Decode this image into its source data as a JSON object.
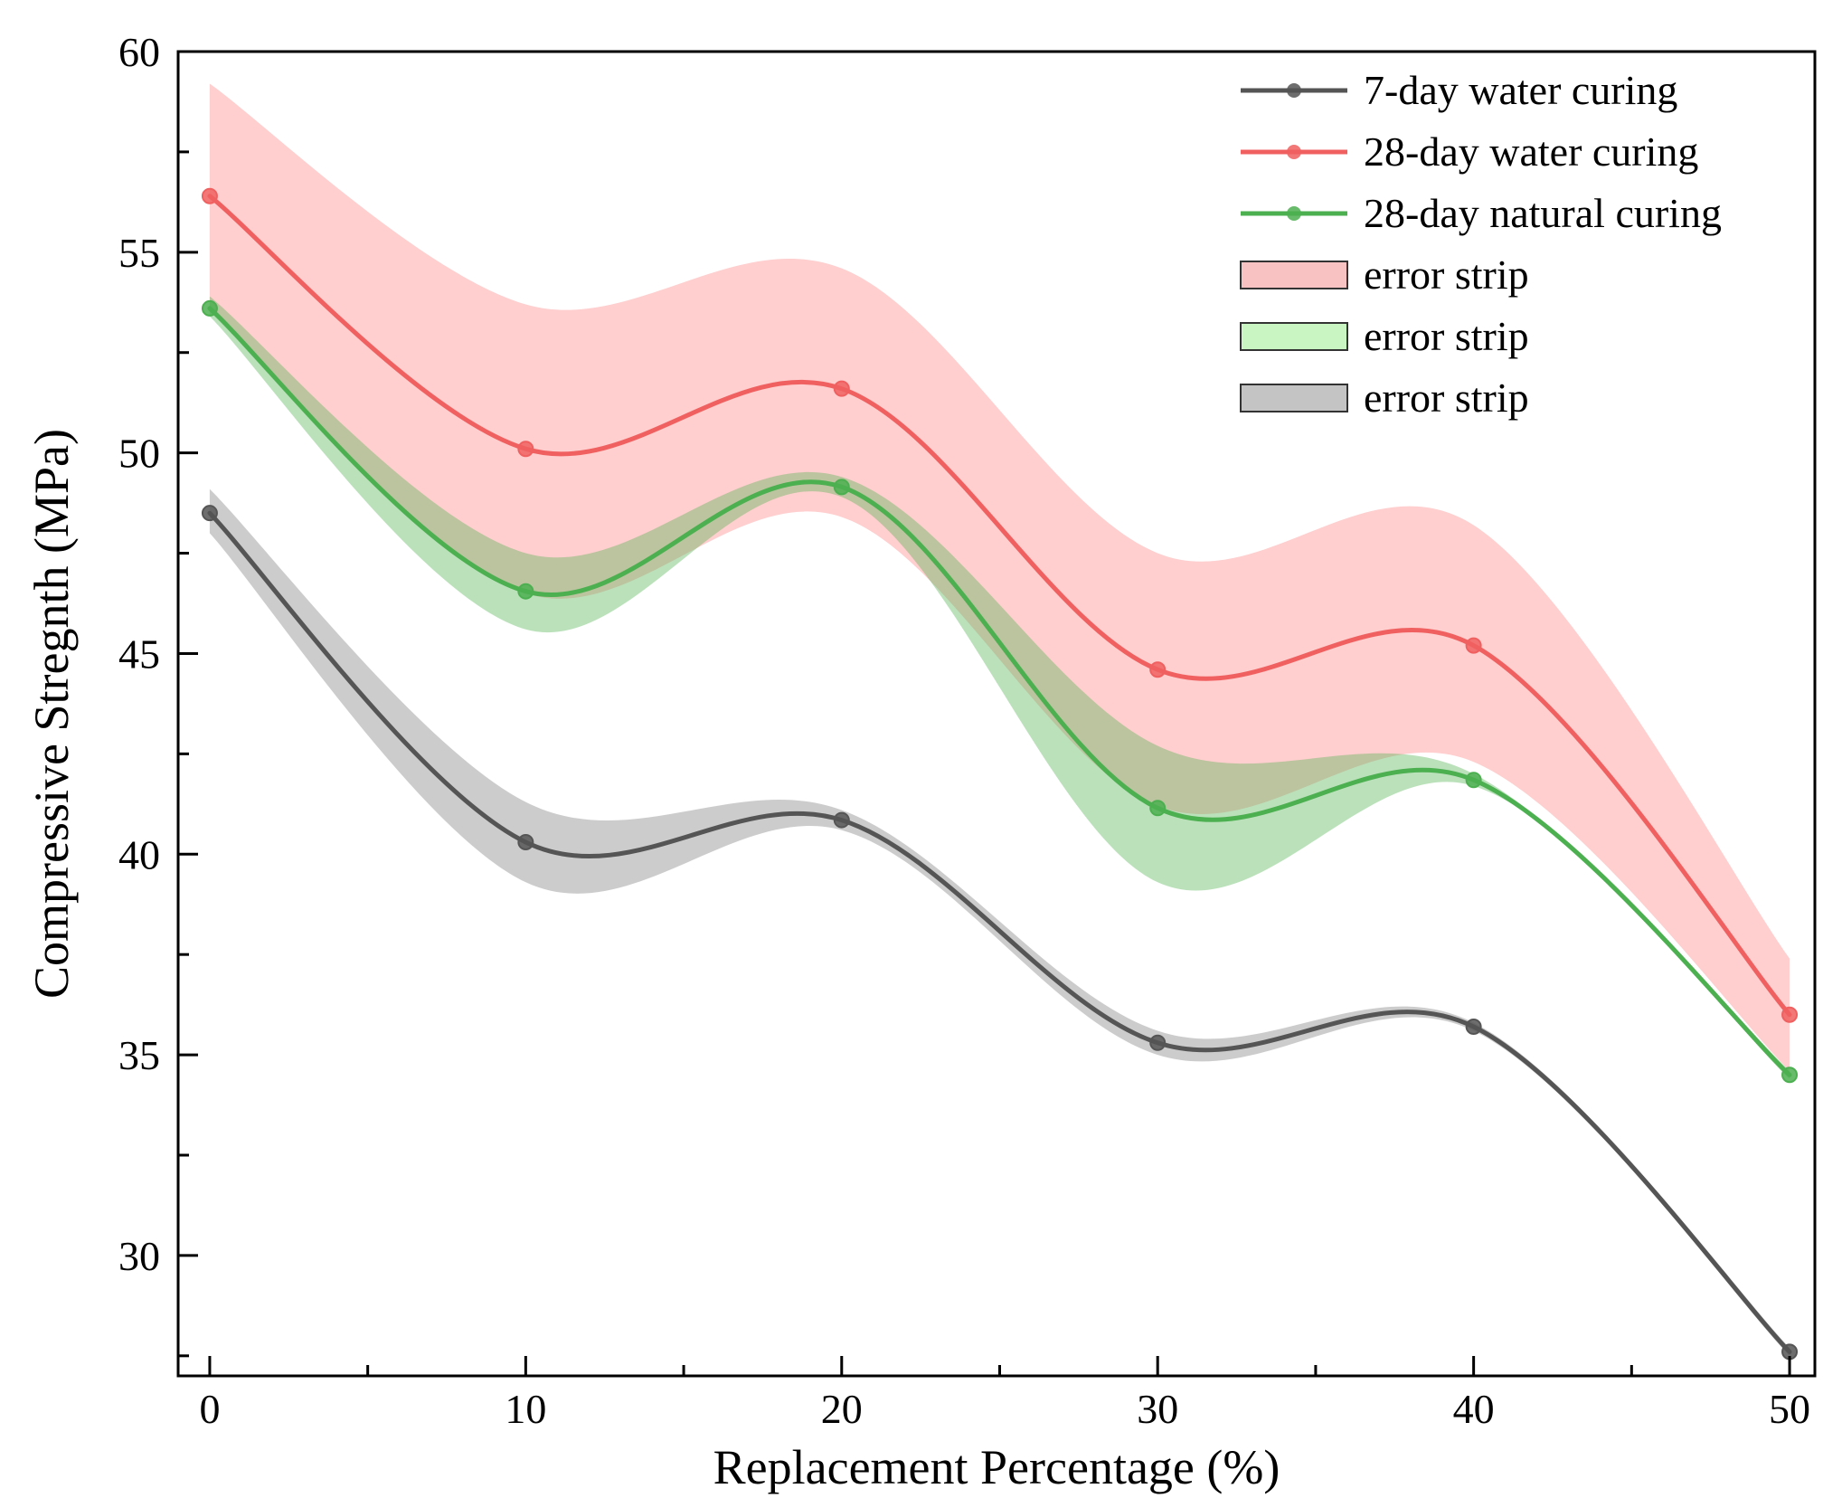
{
  "chart_data": {
    "type": "line",
    "title": "",
    "xlabel": "Replacement Percentage (%)",
    "ylabel": "Compressive Stregnth (MPa)",
    "xlim": [
      -1,
      50.8
    ],
    "ylim": [
      27,
      60
    ],
    "xticks": [
      0,
      10,
      20,
      30,
      40,
      50
    ],
    "yticks": [
      30,
      35,
      40,
      45,
      50,
      55,
      60
    ],
    "xtick_labels": [
      "0",
      "10",
      "20",
      "30",
      "40",
      "50"
    ],
    "ytick_labels": [
      "30",
      "35",
      "40",
      "45",
      "50",
      "55",
      "60"
    ],
    "grid": false,
    "legend_position": "top-right",
    "x": [
      0,
      10,
      20,
      30,
      40,
      50
    ],
    "series": [
      {
        "name": "7-day  water  curing",
        "color": "#555555",
        "values": [
          48.5,
          40.3,
          40.85,
          35.3,
          35.7,
          27.6
        ],
        "lower": [
          48.0,
          39.3,
          40.6,
          35.0,
          35.6,
          27.5
        ],
        "upper": [
          49.1,
          41.3,
          41.1,
          35.6,
          35.8,
          27.7
        ]
      },
      {
        "name": "28-day  water  curing",
        "color": "#f06060",
        "values": [
          56.4,
          50.1,
          51.6,
          44.6,
          45.2,
          36.0
        ],
        "lower": [
          53.6,
          46.5,
          48.4,
          41.2,
          42.3,
          34.6
        ],
        "upper": [
          59.2,
          53.7,
          54.6,
          47.5,
          48.2,
          37.4
        ]
      },
      {
        "name": "28-day natural curing",
        "color": "#4caf50",
        "values": [
          53.6,
          46.55,
          49.15,
          41.15,
          41.85,
          34.5
        ],
        "lower": [
          53.4,
          45.6,
          48.9,
          39.3,
          41.7,
          34.4
        ],
        "upper": [
          53.9,
          47.5,
          49.4,
          42.7,
          42.0,
          34.6
        ]
      }
    ],
    "bands": [
      {
        "name": "error strip",
        "series": "28-day  water  curing",
        "fill": "#ffb3b3",
        "swatch": "#f9c2c2",
        "opacity": 0.65
      },
      {
        "name": "error strip",
        "series": "28-day natural curing",
        "fill": "#5cb85c",
        "swatch": "#c8f5c2",
        "opacity": 0.42
      },
      {
        "name": "error strip",
        "series": "7-day  water  curing",
        "fill": "#999999",
        "swatch": "#c4c4c4",
        "opacity": 0.5
      }
    ]
  }
}
